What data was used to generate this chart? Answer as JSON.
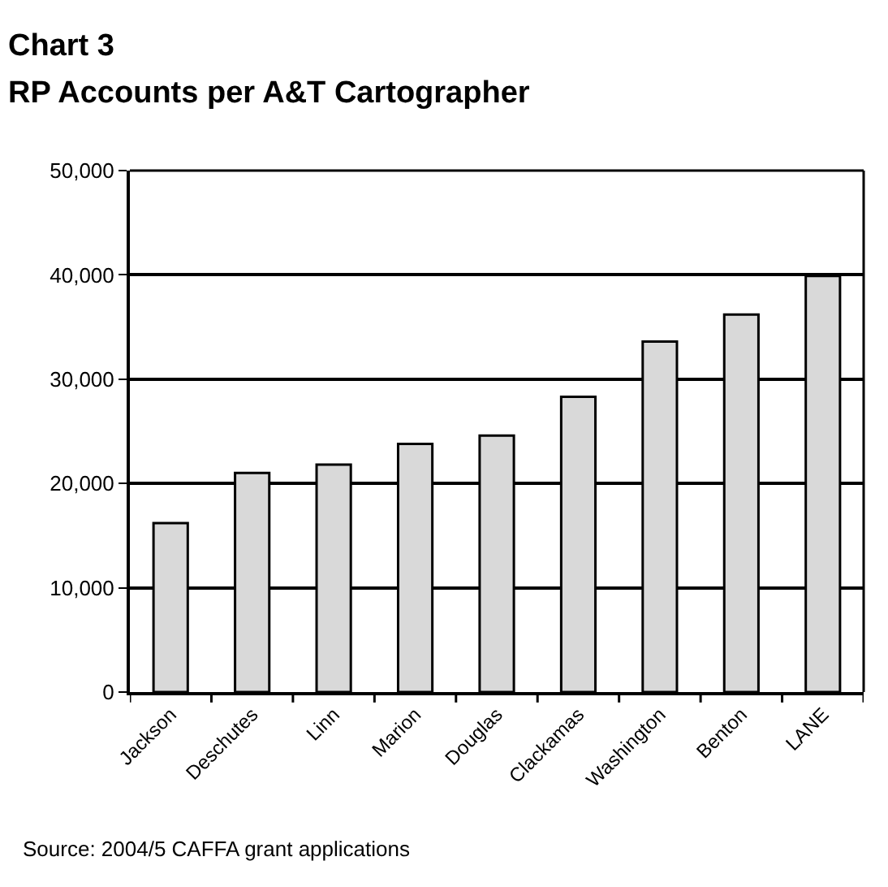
{
  "chart_data": {
    "type": "bar",
    "title": "Chart 3",
    "subtitle": "RP Accounts per A&T Cartographer",
    "categories": [
      "Jackson",
      "Deschutes",
      "Linn",
      "Marion",
      "Douglas",
      "Clackamas",
      "Washington",
      "Benton",
      "LANE"
    ],
    "values": [
      16200,
      21000,
      21800,
      23800,
      24600,
      28300,
      33600,
      36200,
      39900
    ],
    "color": "#d9d9d9",
    "ylim": [
      0,
      50000
    ],
    "yticks": [
      {
        "value": 0,
        "label": "0"
      },
      {
        "value": 10000,
        "label": "10,000"
      },
      {
        "value": 20000,
        "label": "20,000"
      },
      {
        "value": 30000,
        "label": "30,000"
      },
      {
        "value": 40000,
        "label": "40,000"
      },
      {
        "value": 50000,
        "label": "50,000"
      }
    ],
    "grid": "y",
    "annotations": [
      "Source: 2004/5 CAFFA grant applications"
    ]
  }
}
